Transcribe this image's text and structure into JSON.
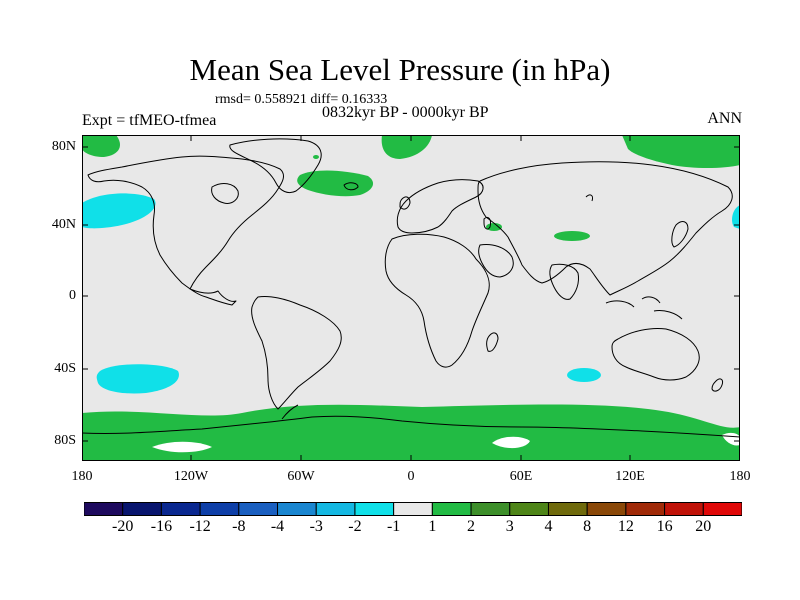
{
  "title": "Mean Sea Level Pressure (in hPa)",
  "stats": "rmsd= 0.558921 diff= 0.16333",
  "period": "0832kyr BP - 0000kyr BP",
  "experiment": "Expt = tfMEO-tfmea",
  "season": "ANN",
  "lat_labels": [
    "80N",
    "40N",
    "0",
    "40S",
    "80S"
  ],
  "lon_labels": [
    "180",
    "120W",
    "60W",
    "0",
    "60E",
    "120E",
    "180"
  ],
  "colorbar": {
    "labels": [
      "-20",
      "-16",
      "-12",
      "-8",
      "-4",
      "-3",
      "-2",
      "-1",
      "1",
      "2",
      "3",
      "4",
      "8",
      "12",
      "16",
      "20"
    ],
    "colors": [
      "#1e0a5e",
      "#08156e",
      "#0a2890",
      "#0e3fa8",
      "#1a5fc0",
      "#1a86d0",
      "#14b8e2",
      "#10e0e8",
      "#e8e8e8",
      "#22bb44",
      "#3d8f2a",
      "#4e8518",
      "#6f6a0c",
      "#8a4808",
      "#a02a08",
      "#c01208",
      "#e00808"
    ]
  },
  "colors": {
    "background": "#e8e8e8",
    "positive": "#22bb44",
    "negative": "#10e0e8",
    "high": "#ffffff"
  }
}
